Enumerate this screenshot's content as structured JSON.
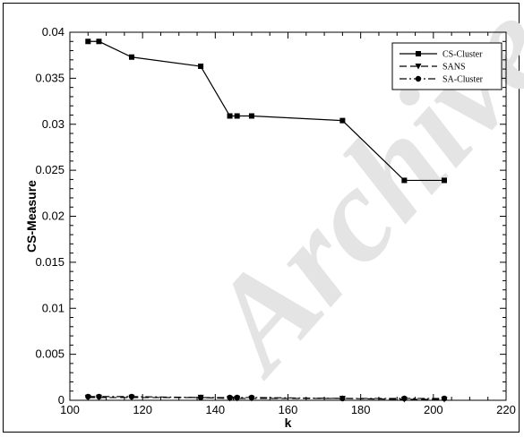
{
  "chart_data": {
    "type": "line",
    "title": "",
    "xlabel": "k",
    "ylabel": "CS-Measure",
    "xlim": [
      100,
      220
    ],
    "ylim": [
      0,
      0.04
    ],
    "x_ticks": [
      "100",
      "120",
      "140",
      "160",
      "180",
      "200",
      "220"
    ],
    "y_ticks": [
      "0",
      "0.005",
      "0.01",
      "0.015",
      "0.02",
      "0.025",
      "0.03",
      "0.035",
      "0.04"
    ],
    "legend_position": "top-right",
    "grid": false,
    "series": [
      {
        "name": "CS-Cluster",
        "marker": "square",
        "line_style": "solid",
        "x": [
          105,
          108,
          117,
          136,
          144,
          146,
          150,
          175,
          192,
          203
        ],
        "y": [
          0.039,
          0.039,
          0.0373,
          0.0363,
          0.0309,
          0.0309,
          0.0309,
          0.0304,
          0.0239,
          0.0239
        ]
      },
      {
        "name": "SANS",
        "marker": "triangle-down",
        "line_style": "dashed",
        "x": [
          105,
          108,
          117,
          136,
          144,
          146,
          150,
          175,
          192,
          203
        ],
        "y": [
          0.0003,
          0.0003,
          0.0003,
          0.0003,
          0.0002,
          0.0002,
          0.0002,
          0.0002,
          0.0001,
          0.0001
        ]
      },
      {
        "name": "SA-Cluster",
        "marker": "circle",
        "line_style": "dash-dot",
        "x": [
          105,
          108,
          117,
          136,
          144,
          146,
          150,
          175,
          192,
          203
        ],
        "y": [
          0.0004,
          0.0004,
          0.0004,
          0.0003,
          0.0003,
          0.0003,
          0.0003,
          0.0002,
          0.0002,
          0.0002
        ]
      }
    ],
    "watermark": "Archive"
  }
}
